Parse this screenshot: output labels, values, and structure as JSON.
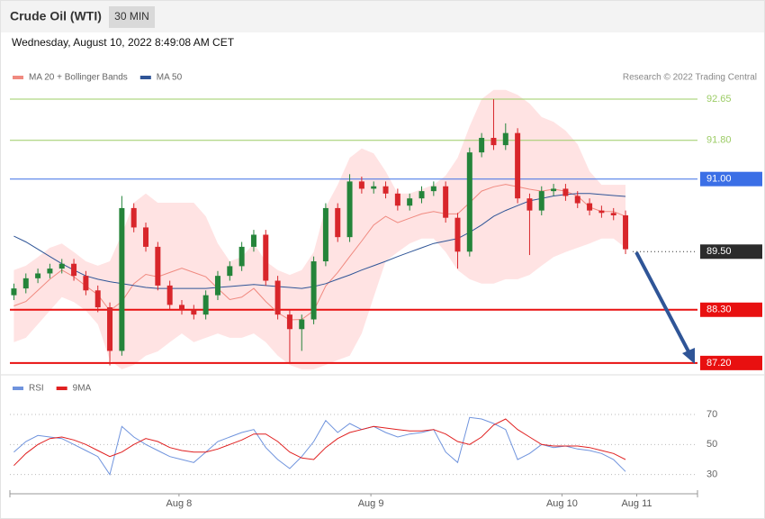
{
  "header": {
    "title": "Crude Oil (WTI)",
    "interval": "30 MIN",
    "timestamp": "Wednesday, August 10, 2022 8:49:08 AM CET",
    "credit": "Research © 2022 Trading Central"
  },
  "chart_data": [
    {
      "type": "candlestick",
      "x": [
        1,
        4,
        7,
        10,
        13,
        16,
        19,
        22,
        25,
        28,
        31,
        34,
        37,
        40,
        43,
        46,
        49,
        52,
        55,
        58,
        61,
        64,
        67,
        70,
        73,
        76,
        79,
        82,
        85,
        88,
        91,
        94,
        97,
        100,
        103,
        106,
        109,
        112,
        115,
        118,
        121,
        124,
        127,
        130,
        133,
        136,
        139,
        142,
        145,
        148,
        151,
        154
      ],
      "xlim": [
        0,
        172
      ],
      "ylim": [
        87.03,
        92.93
      ],
      "open": [
        88.6,
        88.74,
        88.95,
        89.05,
        89.15,
        89.25,
        89.0,
        88.7,
        88.35,
        87.45,
        90.4,
        90.0,
        89.6,
        88.8,
        88.4,
        88.3,
        88.2,
        88.6,
        89.0,
        89.2,
        89.6,
        89.85,
        88.9,
        88.2,
        87.9,
        88.1,
        89.3,
        90.4,
        89.8,
        90.95,
        90.8,
        90.85,
        90.7,
        90.45,
        90.6,
        90.75,
        90.85,
        90.2,
        89.5,
        91.55,
        91.85,
        91.7,
        91.95,
        90.6,
        90.35,
        90.75,
        90.8,
        90.65,
        90.5,
        90.35,
        90.3,
        90.25
      ],
      "high": [
        88.84,
        89.05,
        89.15,
        89.25,
        89.35,
        89.35,
        89.1,
        88.8,
        88.45,
        90.65,
        90.5,
        90.1,
        89.7,
        88.9,
        88.5,
        88.4,
        88.7,
        89.1,
        89.3,
        89.7,
        89.95,
        89.95,
        89.0,
        88.3,
        88.2,
        89.4,
        90.5,
        90.5,
        91.1,
        91.05,
        90.95,
        90.95,
        90.8,
        90.7,
        90.85,
        90.95,
        90.95,
        90.3,
        91.65,
        91.95,
        92.65,
        92.15,
        92.05,
        90.7,
        90.85,
        90.9,
        90.9,
        90.75,
        90.6,
        90.45,
        90.4,
        90.35
      ],
      "low": [
        88.5,
        88.64,
        88.85,
        88.95,
        89.05,
        88.9,
        88.6,
        88.25,
        87.15,
        87.35,
        89.9,
        89.5,
        88.7,
        88.3,
        88.2,
        88.1,
        88.1,
        88.5,
        88.9,
        89.1,
        89.5,
        88.8,
        88.1,
        87.2,
        87.45,
        88.0,
        89.2,
        89.7,
        89.7,
        90.7,
        90.7,
        90.6,
        90.35,
        90.35,
        90.5,
        90.65,
        90.1,
        89.15,
        89.4,
        91.45,
        91.6,
        91.6,
        90.5,
        89.43,
        90.25,
        90.65,
        90.55,
        90.4,
        90.25,
        90.2,
        90.15,
        89.45
      ],
      "close": [
        88.74,
        88.95,
        89.05,
        89.15,
        89.25,
        89.0,
        88.7,
        88.35,
        87.45,
        90.4,
        90.0,
        89.6,
        88.8,
        88.4,
        88.3,
        88.2,
        88.6,
        89.0,
        89.2,
        89.6,
        89.85,
        88.9,
        88.2,
        87.9,
        88.1,
        89.3,
        90.4,
        89.8,
        90.95,
        90.8,
        90.85,
        90.7,
        90.45,
        90.6,
        90.75,
        90.85,
        90.2,
        89.5,
        91.55,
        91.85,
        91.7,
        91.95,
        90.6,
        90.35,
        90.75,
        90.8,
        90.65,
        90.5,
        90.35,
        90.3,
        90.25,
        89.55
      ],
      "up_color": "#24843a",
      "down_color": "#d8262b",
      "series": [
        {
          "name": "MA 20 + Bollinger Bands",
          "color": "#f08a80",
          "band_color": "#ffe3e3",
          "values": [
            88.38,
            88.47,
            88.7,
            88.93,
            89.12,
            88.98,
            88.79,
            88.61,
            88.28,
            88.47,
            88.84,
            89.03,
            88.98,
            89.07,
            89.16,
            89.07,
            88.98,
            88.74,
            88.51,
            88.56,
            88.74,
            88.47,
            88.24,
            88.09,
            88.1,
            88.28,
            88.79,
            89.07,
            89.4,
            89.72,
            90.05,
            90.23,
            90.1,
            90.19,
            90.28,
            90.33,
            90.28,
            90.28,
            90.51,
            90.75,
            90.84,
            90.89,
            90.84,
            90.79,
            90.75,
            90.79,
            90.75,
            90.65,
            90.42,
            90.33,
            90.33,
            90.23
          ],
          "upper": [
            89.12,
            89.21,
            89.39,
            89.58,
            89.67,
            89.49,
            89.3,
            89.21,
            89.3,
            89.86,
            90.51,
            90.7,
            90.51,
            90.51,
            90.51,
            90.51,
            90.23,
            89.67,
            89.3,
            89.39,
            89.67,
            89.3,
            89.12,
            89.02,
            89.12,
            89.49,
            90.42,
            90.88,
            91.44,
            91.63,
            91.53,
            91.16,
            90.7,
            90.7,
            90.79,
            90.88,
            91.07,
            91.44,
            92.09,
            92.65,
            92.84,
            92.84,
            92.74,
            92.56,
            92.28,
            92.18,
            92.0,
            91.72,
            91.16,
            90.88,
            90.88,
            90.88
          ],
          "lower": [
            87.63,
            87.72,
            88.0,
            88.28,
            88.56,
            88.46,
            88.28,
            88.0,
            87.26,
            87.07,
            87.16,
            87.35,
            87.44,
            87.63,
            87.81,
            87.63,
            87.72,
            87.81,
            87.72,
            87.72,
            87.81,
            87.63,
            87.35,
            87.16,
            87.07,
            87.07,
            87.16,
            87.26,
            87.35,
            87.81,
            88.56,
            89.3,
            89.49,
            89.67,
            89.77,
            89.77,
            89.49,
            89.12,
            88.93,
            88.84,
            88.84,
            88.93,
            88.93,
            89.02,
            89.21,
            89.39,
            89.49,
            89.58,
            89.67,
            89.77,
            89.77,
            89.58
          ]
        },
        {
          "name": "MA 50",
          "color": "#2f5597",
          "values": [
            89.82,
            89.7,
            89.55,
            89.4,
            89.25,
            89.12,
            89.0,
            88.93,
            88.88,
            88.84,
            88.8,
            88.76,
            88.74,
            88.74,
            88.74,
            88.74,
            88.74,
            88.76,
            88.78,
            88.8,
            88.82,
            88.8,
            88.78,
            88.76,
            88.74,
            88.78,
            88.84,
            88.93,
            89.02,
            89.12,
            89.21,
            89.3,
            89.4,
            89.49,
            89.58,
            89.67,
            89.72,
            89.77,
            89.9,
            90.05,
            90.23,
            90.35,
            90.45,
            90.55,
            90.6,
            90.65,
            90.68,
            90.7,
            90.7,
            90.68,
            90.66,
            90.64
          ]
        }
      ],
      "levels": [
        {
          "value": 92.65,
          "label": "92.65",
          "color": "#9ccc65",
          "line": "solid",
          "boxed": false
        },
        {
          "value": 91.8,
          "label": "91.80",
          "color": "#9ccc65",
          "line": "solid",
          "boxed": false
        },
        {
          "value": 91.0,
          "label": "91.00",
          "color": "#3b6fe6",
          "line": "solid",
          "boxed": true
        },
        {
          "value": 89.5,
          "label": "89.50",
          "color": "#2b2b2b",
          "line": "dotted",
          "boxed": true
        },
        {
          "value": 88.3,
          "label": "88.30",
          "color": "#e81010",
          "line": "solid",
          "boxed": true
        },
        {
          "value": 87.2,
          "label": "87.20",
          "color": "#e81010",
          "line": "solid",
          "boxed": true
        }
      ]
    },
    {
      "type": "line",
      "x": [
        1,
        4,
        7,
        10,
        13,
        16,
        19,
        22,
        25,
        28,
        31,
        34,
        37,
        40,
        43,
        46,
        49,
        52,
        55,
        58,
        61,
        64,
        67,
        70,
        73,
        76,
        79,
        82,
        85,
        88,
        91,
        94,
        97,
        100,
        103,
        106,
        109,
        112,
        115,
        118,
        121,
        124,
        127,
        130,
        133,
        136,
        139,
        142,
        145,
        148,
        151,
        154
      ],
      "xlim": [
        0,
        172
      ],
      "ylim": [
        22,
        79
      ],
      "yticks": [
        70,
        50,
        30
      ],
      "grid": true,
      "xticks": [
        {
          "value": 42.3,
          "label": "Aug 8"
        },
        {
          "value": 90.3,
          "label": "Aug 9"
        },
        {
          "value": 138.1,
          "label": "Aug 10"
        },
        {
          "value": 156.8,
          "label": "Aug 11"
        }
      ],
      "series": [
        {
          "name": "RSI",
          "color": "#6f93dd",
          "values": [
            45,
            52,
            56,
            55,
            54,
            50,
            46,
            42,
            30,
            62,
            55,
            50,
            46,
            42,
            40,
            38,
            45,
            52,
            55,
            58,
            60,
            48,
            40,
            34,
            42,
            52,
            66,
            58,
            64,
            60,
            62,
            58,
            55,
            57,
            58,
            60,
            45,
            38,
            68,
            67,
            64,
            60,
            40,
            44,
            50,
            48,
            49,
            47,
            46,
            44,
            40,
            32
          ]
        },
        {
          "name": "9MA",
          "color": "#e02020",
          "values": [
            36,
            44,
            50,
            54,
            55,
            53,
            50,
            46,
            42,
            45,
            50,
            54,
            52,
            48,
            46,
            45,
            45,
            47,
            50,
            53,
            57,
            57,
            52,
            45,
            41,
            40,
            48,
            54,
            58,
            60,
            62,
            61,
            60,
            59,
            59,
            60,
            57,
            52,
            50,
            55,
            63,
            67,
            60,
            55,
            50,
            49,
            49,
            49,
            48,
            46,
            44,
            40
          ]
        }
      ]
    }
  ]
}
